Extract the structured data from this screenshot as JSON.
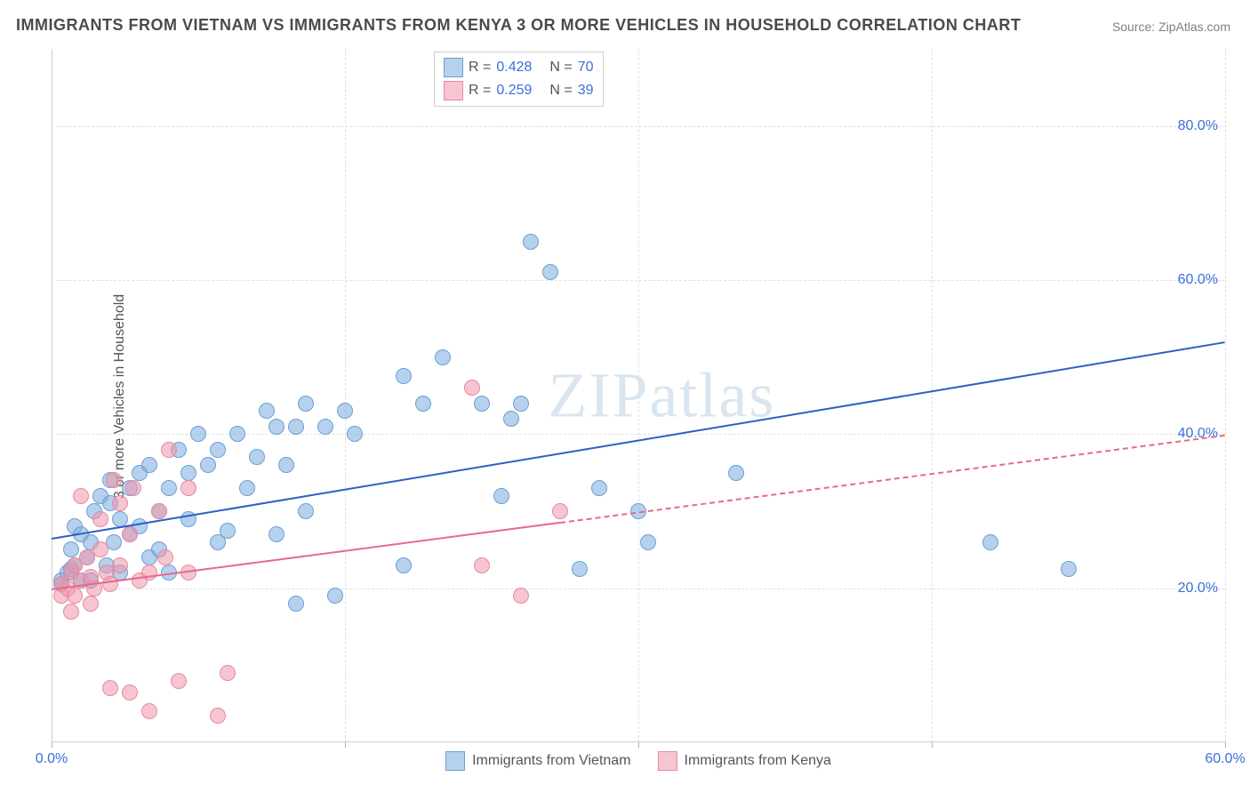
{
  "title": "IMMIGRANTS FROM VIETNAM VS IMMIGRANTS FROM KENYA 3 OR MORE VEHICLES IN HOUSEHOLD CORRELATION CHART",
  "source": "Source: ZipAtlas.com",
  "ylabel": "3 or more Vehicles in Household",
  "watermark": "ZIPatlas",
  "chart": {
    "type": "scatter",
    "xlim": [
      0,
      60
    ],
    "ylim": [
      0,
      90
    ],
    "xticks": [
      0,
      30,
      60
    ],
    "xtick_labels": [
      "0.0%",
      "",
      "60.0%"
    ],
    "xtick_minor": [
      15,
      45
    ],
    "yticks": [
      20,
      40,
      60,
      80
    ],
    "ytick_labels": [
      "20.0%",
      "40.0%",
      "60.0%",
      "80.0%"
    ],
    "grid_color": "#e0e0e0",
    "background_color": "#ffffff",
    "axis_color": "#d0d0d0",
    "tick_label_color": "#3a6fd8",
    "point_radius": 9,
    "series": [
      {
        "name": "Immigrants from Vietnam",
        "fill": "rgba(122,172,222,0.55)",
        "stroke": "#6b9fd4",
        "trend_color": "#2d5fc4",
        "trend_start": [
          0,
          26.5
        ],
        "trend_end": [
          60,
          52
        ],
        "trend_dash_from_x": null,
        "R": "0.428",
        "N": "70",
        "points": [
          [
            0.5,
            21
          ],
          [
            0.5,
            20.5
          ],
          [
            0.8,
            22
          ],
          [
            1,
            22.5
          ],
          [
            1,
            25
          ],
          [
            1.2,
            23
          ],
          [
            1.2,
            28
          ],
          [
            1.5,
            21
          ],
          [
            1.5,
            27
          ],
          [
            1.8,
            24
          ],
          [
            2,
            21
          ],
          [
            2,
            26
          ],
          [
            2.2,
            30
          ],
          [
            2.5,
            32
          ],
          [
            2.8,
            23
          ],
          [
            3,
            31
          ],
          [
            3,
            34
          ],
          [
            3.2,
            26
          ],
          [
            3.5,
            22
          ],
          [
            3.5,
            29
          ],
          [
            4,
            33
          ],
          [
            4,
            27
          ],
          [
            4.5,
            28
          ],
          [
            4.5,
            35
          ],
          [
            5,
            24
          ],
          [
            5,
            36
          ],
          [
            5.5,
            30
          ],
          [
            5.5,
            25
          ],
          [
            6,
            22
          ],
          [
            6,
            33
          ],
          [
            6.5,
            38
          ],
          [
            7,
            35
          ],
          [
            7,
            29
          ],
          [
            7.5,
            40
          ],
          [
            8,
            36
          ],
          [
            8.5,
            26
          ],
          [
            8.5,
            38
          ],
          [
            9,
            27.5
          ],
          [
            9.5,
            40
          ],
          [
            10,
            33
          ],
          [
            10.5,
            37
          ],
          [
            11,
            43
          ],
          [
            11.5,
            27
          ],
          [
            11.5,
            41
          ],
          [
            12,
            36
          ],
          [
            12.5,
            41
          ],
          [
            12.5,
            18
          ],
          [
            13,
            44
          ],
          [
            13,
            30
          ],
          [
            14,
            41
          ],
          [
            14.5,
            19
          ],
          [
            15,
            43
          ],
          [
            15.5,
            40
          ],
          [
            18,
            47.5
          ],
          [
            18,
            23
          ],
          [
            19,
            44
          ],
          [
            20,
            50
          ],
          [
            22,
            44
          ],
          [
            23,
            32
          ],
          [
            23.5,
            42
          ],
          [
            24,
            44
          ],
          [
            24.5,
            65
          ],
          [
            25.5,
            61
          ],
          [
            27,
            22.5
          ],
          [
            28,
            33
          ],
          [
            30,
            30
          ],
          [
            30.5,
            26
          ],
          [
            35,
            35
          ],
          [
            48,
            26
          ],
          [
            52,
            22.5
          ]
        ]
      },
      {
        "name": "Immigrants from Kenya",
        "fill": "rgba(240,150,170,0.55)",
        "stroke": "#e48aa0",
        "trend_color": "#e56a8a",
        "trend_start": [
          0,
          20
        ],
        "trend_end": [
          60,
          40
        ],
        "trend_dash_from_x": 26,
        "R": "0.259",
        "N": "39",
        "points": [
          [
            0.5,
            19
          ],
          [
            0.5,
            20.5
          ],
          [
            0.8,
            20
          ],
          [
            1,
            22
          ],
          [
            1,
            17
          ],
          [
            1.2,
            19
          ],
          [
            1.2,
            23
          ],
          [
            1.5,
            21
          ],
          [
            1.5,
            32
          ],
          [
            1.8,
            24
          ],
          [
            2,
            18
          ],
          [
            2,
            21.5
          ],
          [
            2.2,
            20
          ],
          [
            2.5,
            25
          ],
          [
            2.5,
            29
          ],
          [
            2.8,
            22
          ],
          [
            3,
            20.5
          ],
          [
            3,
            7
          ],
          [
            3.2,
            34
          ],
          [
            3.5,
            31
          ],
          [
            3.5,
            23
          ],
          [
            4,
            6.5
          ],
          [
            4,
            27
          ],
          [
            4.2,
            33
          ],
          [
            4.5,
            21
          ],
          [
            5,
            22
          ],
          [
            5,
            4
          ],
          [
            5.5,
            30
          ],
          [
            5.8,
            24
          ],
          [
            6,
            38
          ],
          [
            6.5,
            8
          ],
          [
            7,
            33
          ],
          [
            7,
            22
          ],
          [
            8.5,
            3.5
          ],
          [
            9,
            9
          ],
          [
            22,
            23
          ],
          [
            21.5,
            46
          ],
          [
            24,
            19
          ],
          [
            26,
            30
          ]
        ]
      }
    ]
  },
  "legend_top": [
    {
      "swatch_fill": "rgba(122,172,222,0.55)",
      "swatch_stroke": "#6b9fd4",
      "R": "0.428",
      "N": "70"
    },
    {
      "swatch_fill": "rgba(240,150,170,0.55)",
      "swatch_stroke": "#e48aa0",
      "R": "0.259",
      "N": "39"
    }
  ],
  "legend_bottom": [
    {
      "swatch_fill": "rgba(122,172,222,0.55)",
      "swatch_stroke": "#6b9fd4",
      "label": "Immigrants from Vietnam"
    },
    {
      "swatch_fill": "rgba(240,150,170,0.55)",
      "swatch_stroke": "#e48aa0",
      "label": "Immigrants from Kenya"
    }
  ]
}
